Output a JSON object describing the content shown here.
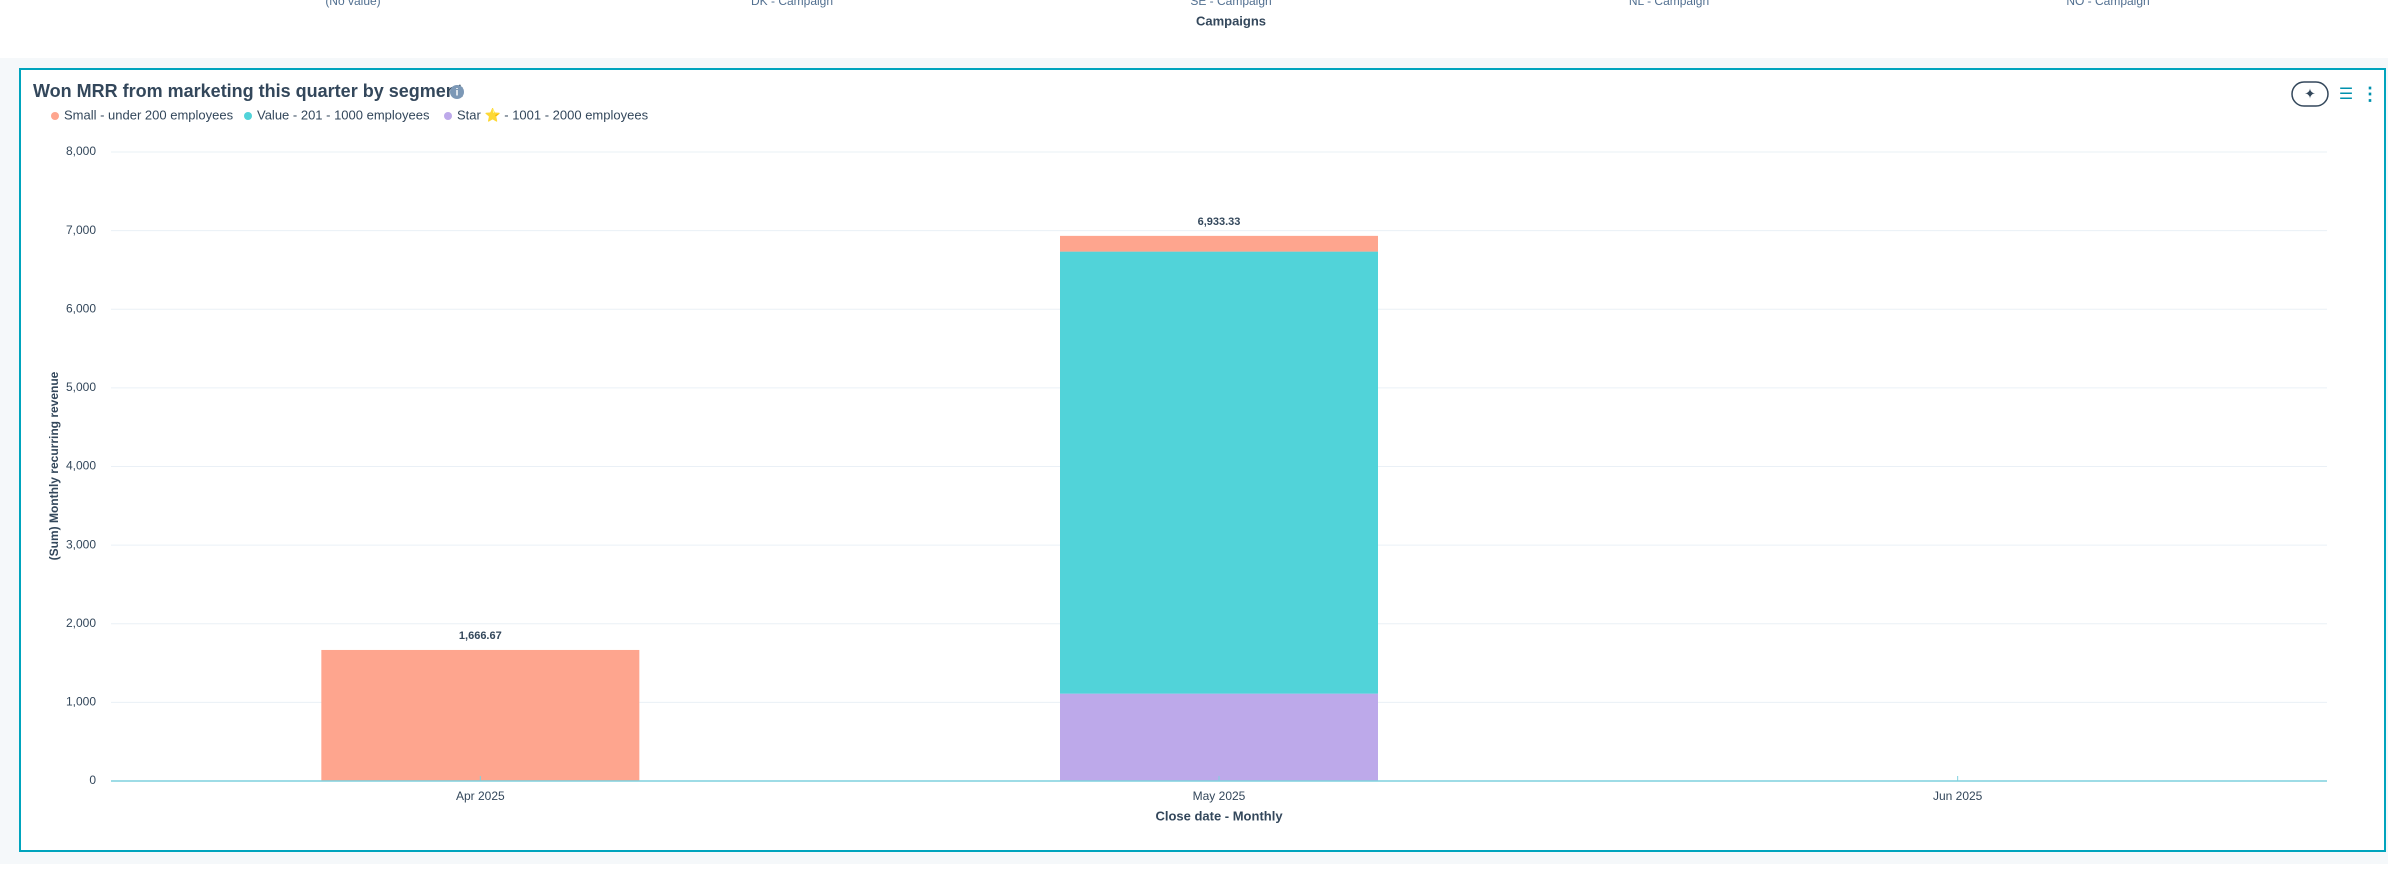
{
  "above_panel": {
    "categories": [
      "(No value)",
      "DK - Campaign",
      "SE - Campaign",
      "NL - Campaign",
      "NO - Campaign"
    ],
    "x_label": "Campaigns"
  },
  "chart_data": {
    "type": "stacked_bar",
    "title": "Won MRR from marketing this quarter by segment",
    "categories": [
      "Apr 2025",
      "May 2025",
      "Jun 2025"
    ],
    "series": [
      {
        "name": "Small - under 200 employees",
        "color": "#fea58e",
        "values": [
          1666.67,
          200,
          null
        ]
      },
      {
        "name": "Value - 201 - 1000 employees",
        "color": "#51d3d9",
        "values": [
          null,
          5622.22,
          null
        ]
      },
      {
        "name": "Star ⭐ - 1001 - 2000 employees",
        "color": "#bda9ea",
        "values": [
          null,
          1111.11,
          null
        ]
      }
    ],
    "totals": [
      1666.67,
      6933.33,
      null
    ],
    "total_labels": [
      "1,666.67",
      "6,933.33",
      null
    ],
    "x_label": "Close date - Monthly",
    "y_label": "(Sum) Monthly recurring revenue",
    "ylim": [
      0,
      8000
    ],
    "yticks": [
      0,
      {
        "value": 1000,
        "label": "1,000"
      },
      {
        "value": 2000,
        "label": "2,000"
      },
      {
        "value": 3000,
        "label": "3,000"
      },
      {
        "value": 4000,
        "label": "4,000"
      },
      {
        "value": 5000,
        "label": "5,000"
      },
      {
        "value": 6000,
        "label": "6,000"
      },
      {
        "value": 7000,
        "label": "7,000"
      },
      {
        "value": 8000,
        "label": "8,000"
      }
    ],
    "grid": true
  }
}
